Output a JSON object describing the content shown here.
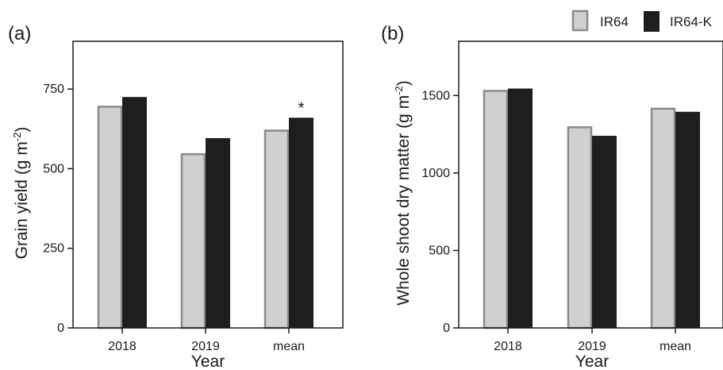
{
  "legend": {
    "position": "top-right",
    "entries": [
      {
        "label": "IR64",
        "fill": "#d0d0d0",
        "stroke": "#8a8a8a"
      },
      {
        "label": "IR64-K",
        "fill": "#1e1e1e",
        "stroke": "#1e1e1e"
      }
    ]
  },
  "chart_data": [
    {
      "type": "bar",
      "panel_label": "(a)",
      "categories": [
        "2018",
        "2019",
        "mean"
      ],
      "series": [
        {
          "name": "IR64",
          "values": [
            697,
            548,
            622
          ]
        },
        {
          "name": "IR64-K",
          "values": [
            725,
            596,
            660
          ]
        }
      ],
      "xlabel": "Year",
      "ylabel": {
        "main": "Grain yield (g m",
        "superscript": "-2",
        "close": ")"
      },
      "ylim": [
        0,
        900
      ],
      "yticks": [
        "0",
        "250",
        "500",
        "750"
      ],
      "annotations": [
        {
          "text": "*",
          "category": "mean",
          "series": "IR64-K"
        }
      ],
      "grid": false
    },
    {
      "type": "bar",
      "panel_label": "(b)",
      "categories": [
        "2018",
        "2019",
        "mean"
      ],
      "series": [
        {
          "name": "IR64",
          "values": [
            1535,
            1300,
            1420
          ]
        },
        {
          "name": "IR64-K",
          "values": [
            1545,
            1240,
            1395
          ]
        }
      ],
      "xlabel": "Year",
      "ylabel": {
        "main": "Whole shoot dry matter  (g m",
        "superscript": "-2",
        "close": ")"
      },
      "ylim": [
        0,
        1850
      ],
      "yticks": [
        "0",
        "500",
        "1000",
        "1500"
      ],
      "annotations": [],
      "grid": false
    }
  ]
}
